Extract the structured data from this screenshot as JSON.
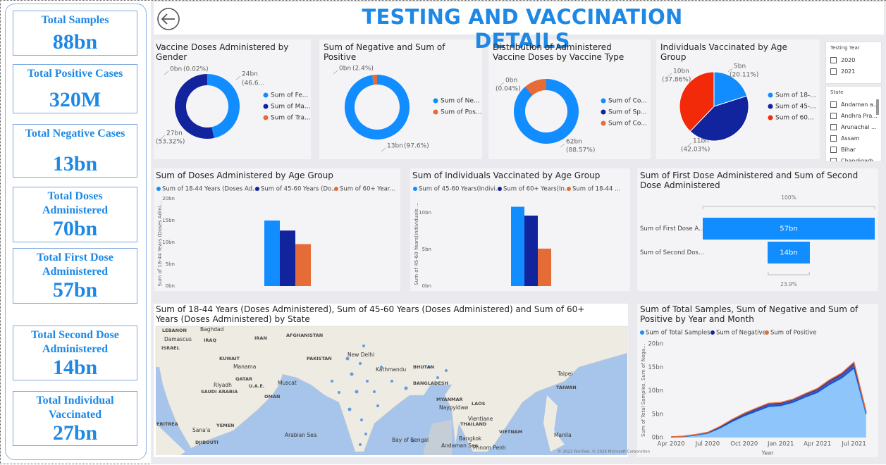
{
  "header": {
    "title": "TESTING AND VACCINATION DETAILS"
  },
  "cards": [
    {
      "label": "Total Samples",
      "value": "88bn"
    },
    {
      "label": "Total Positive Cases",
      "value": "320M"
    },
    {
      "label": "Total Negative Cases",
      "value": "13bn"
    },
    {
      "label": "Total Doses Administered",
      "value": "70bn"
    },
    {
      "label": "Total First Dose Administered",
      "value": "57bn"
    },
    {
      "label": "Total Second Dose Administered",
      "value": "14bn"
    },
    {
      "label": "Total Individual Vaccinated",
      "value": "27bn"
    }
  ],
  "slicers": [
    {
      "title": "Testing Year",
      "items": [
        "2020",
        "2021"
      ]
    },
    {
      "title": "State",
      "items": [
        "Andaman a...",
        "Andhra Pra...",
        "Arunachal ...",
        "Assam",
        "Bihar",
        "Chandigarh"
      ]
    }
  ],
  "chart_data": [
    {
      "type": "donut",
      "title": "Vaccine Doses Administered by Gender",
      "categories": [
        "Sum of Fe...",
        "Sum of Ma...",
        "Sum of Tra..."
      ],
      "colors": [
        "#118dff",
        "#12239e",
        "#e66c37"
      ],
      "values": [
        24,
        27,
        0.01
      ],
      "value_labels": [
        "24bn",
        "27bn",
        "0bn"
      ],
      "percents": [
        46.6,
        53.32,
        0.02
      ],
      "percent_labels": [
        "(46.6...",
        "(53.32%)",
        "(0.02%)"
      ]
    },
    {
      "type": "donut",
      "title": "Sum of Negative and Sum of Positive",
      "categories": [
        "Sum of Ne...",
        "Sum of Pos..."
      ],
      "colors": [
        "#118dff",
        "#e66c37"
      ],
      "values": [
        13,
        0.32
      ],
      "value_labels": [
        "13bn",
        "0bn"
      ],
      "percents": [
        97.6,
        2.4
      ],
      "percent_labels": [
        "(97.6%)",
        "(2.4%)"
      ]
    },
    {
      "type": "donut",
      "title": "Distribution of Administered Vaccine Doses by Vaccine Type",
      "categories": [
        "Sum of Co...",
        "Sum of Sp...",
        "Sum of Co..."
      ],
      "colors": [
        "#118dff",
        "#12239e",
        "#e66c37"
      ],
      "values": [
        62,
        0.03,
        8
      ],
      "value_labels": [
        "62bn",
        "0bn",
        null
      ],
      "percents": [
        88.57,
        0.04,
        11.39
      ],
      "percent_labels": [
        "(88.57%)",
        "(0.04%)",
        null
      ]
    },
    {
      "type": "pie",
      "title": "Individuals Vaccinated by Age Group",
      "categories": [
        "Sum of 18-...",
        "Sum of 45-...",
        "Sum of 60..."
      ],
      "colors": [
        "#118dff",
        "#12239e",
        "#f22a0a"
      ],
      "values": [
        5,
        11,
        10
      ],
      "value_labels": [
        "5bn",
        "11bn",
        "10bn"
      ],
      "percents": [
        20.11,
        42.03,
        37.86
      ],
      "percent_labels": [
        "(20.11%)",
        "(42.03%)",
        "(37.86%)"
      ]
    },
    {
      "type": "bar",
      "title": "Sum of Doses Administered by Age Group",
      "categories": [
        null
      ],
      "series": [
        {
          "name": "Sum of 18-44 Years (Doses Ad...",
          "color": "#118dff",
          "values": [
            15
          ]
        },
        {
          "name": "Sum of 45-60 Years (Do...",
          "color": "#12239e",
          "values": [
            12.7
          ]
        },
        {
          "name": "Sum of 60+ Year...",
          "color": "#e66c37",
          "values": [
            9.6
          ]
        }
      ],
      "y_label": "Sum of 18-44 Years (Doses Admi...",
      "ylim": [
        0,
        20
      ],
      "yticks": [
        {
          "value": 0,
          "label": "0bn"
        },
        {
          "value": 5,
          "label": "5bn"
        },
        {
          "value": 10,
          "label": "10bn"
        },
        {
          "value": 15,
          "label": "15bn"
        },
        {
          "value": 20,
          "label": "20bn"
        }
      ]
    },
    {
      "type": "bar",
      "title": "Sum of Individuals Vaccinated by Age Group",
      "categories": [
        null
      ],
      "series": [
        {
          "name": "Sum of 45-60 Years(Indivi...",
          "color": "#118dff",
          "values": [
            10.8
          ]
        },
        {
          "name": "Sum of 60+ Years(In...",
          "color": "#12239e",
          "values": [
            9.6
          ]
        },
        {
          "name": "Sum of 18-44 ...",
          "color": "#e66c37",
          "values": [
            5.1
          ]
        }
      ],
      "y_label": "Sum of 45-60 Years(Individuals ...",
      "ylim": [
        0,
        12
      ],
      "yticks": [
        {
          "value": 0,
          "label": "0bn"
        },
        {
          "value": 5,
          "label": "5bn"
        },
        {
          "value": 10,
          "label": "10bn"
        }
      ]
    },
    {
      "type": "funnel",
      "title": "Sum of First Dose Administered and Sum of Second Dose Administered",
      "categories": [
        "Sum of First Dose A...",
        "Sum of Second Dos..."
      ],
      "color": "#118dff",
      "values": [
        57,
        14
      ],
      "value_labels": [
        "57bn",
        "14bn"
      ],
      "percents": [
        100,
        23.9
      ],
      "percent_labels": [
        "100%",
        "23.9%"
      ]
    },
    {
      "type": "area",
      "title": "Sum of Total Samples, Sum of Negative and Sum of Positive by Year and Month",
      "stacked": true,
      "x": [
        "Apr 2020",
        null,
        null,
        "Jul 2020",
        null,
        null,
        "Oct 2020",
        null,
        null,
        "Jan 2021",
        null,
        null,
        "Apr 2021",
        null,
        null,
        "Jul 2021",
        null
      ],
      "series": [
        {
          "name": "Sum of Total Samples",
          "color": "#118dff",
          "values": [
            0.1,
            0.2,
            0.5,
            0.9,
            2.0,
            3.4,
            4.6,
            5.6,
            6.6,
            6.8,
            7.5,
            8.6,
            9.6,
            11.3,
            12.7,
            14.8,
            5.0
          ]
        },
        {
          "name": "Sum of Negative",
          "color": "#12239e",
          "values": [
            0.02,
            0.05,
            0.1,
            0.15,
            0.25,
            0.35,
            0.45,
            0.55,
            0.6,
            0.6,
            0.6,
            0.65,
            0.7,
            0.8,
            0.9,
            1.1,
            0.4
          ]
        },
        {
          "name": "Sum of Positive",
          "color": "#e66c37",
          "values": [
            0.01,
            0.02,
            0.03,
            0.05,
            0.08,
            0.1,
            0.12,
            0.12,
            0.1,
            0.08,
            0.08,
            0.1,
            0.15,
            0.2,
            0.15,
            0.15,
            0.05
          ]
        }
      ],
      "y_label": "Sum of Total Samples, Sum of Nega...",
      "x_label": "Year",
      "ylim": [
        0,
        20
      ],
      "yticks": [
        {
          "value": 0,
          "label": "0bn"
        },
        {
          "value": 5,
          "label": "5bn"
        },
        {
          "value": 10,
          "label": "10bn"
        },
        {
          "value": 15,
          "label": "15bn"
        },
        {
          "value": 20,
          "label": "20bn"
        }
      ]
    }
  ],
  "map": {
    "title": "Sum of 18-44 Years (Doses Administered), Sum of 45-60 Years (Doses Administered) and Sum of 60+ Years (Doses Administered) by State",
    "labels": [
      "LEBANON",
      "Baghdad",
      "Damascus",
      "IRAQ",
      "ISRAEL",
      "IRAN",
      "AFGHANISTAN",
      "KUWAIT",
      "PAKISTAN",
      "New Delhi",
      "Manama",
      "QATAR",
      "Riyadh",
      "U.A.E.",
      "Muscat",
      "SAUDI ARABIA",
      "OMAN",
      "Kathmandu",
      "BHUTAN",
      "BANGLADESH",
      "Taipei",
      "TAIWAN",
      "MYANMAR",
      "Naypyidaw",
      "LAOS",
      "Vientiane",
      "THAILAND",
      "VIETNAM",
      "Bangkok",
      "Manila",
      "Phnom Penh",
      "ERITREA",
      "YEMEN",
      "Sana'a",
      "DJIBOUTI",
      "Arabian Sea",
      "Bay of Bengal",
      "Andaman Sea"
    ],
    "credit": "© 2023 TomTom, © 2024 Microsoft Corporation"
  }
}
